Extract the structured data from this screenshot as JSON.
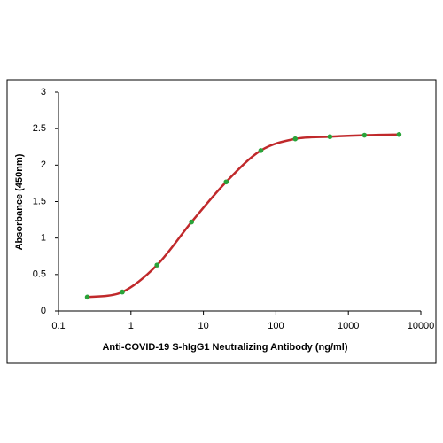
{
  "chart_data": {
    "type": "dose-response",
    "x_label": "Anti-COVID-19  S-hIgG1 Neutralizing Antibody (ng/ml)",
    "y_label": "Absorbance (450nm)",
    "x": [
      0.25,
      0.76,
      2.29,
      6.86,
      20.6,
      62,
      185,
      556,
      1667,
      5000
    ],
    "y": [
      0.19,
      0.26,
      0.63,
      1.22,
      1.77,
      2.2,
      2.36,
      2.39,
      2.41,
      2.42
    ],
    "x_log": true,
    "xlim": [
      0.1,
      10000
    ],
    "xticks": [
      0.1,
      1,
      10,
      100,
      1000,
      10000
    ],
    "ylim": [
      0,
      3
    ],
    "yticks": [
      0,
      0.5,
      1,
      1.5,
      2,
      2.5,
      3
    ],
    "line_color": "#c0292b",
    "marker_color": "#2aa33a"
  }
}
